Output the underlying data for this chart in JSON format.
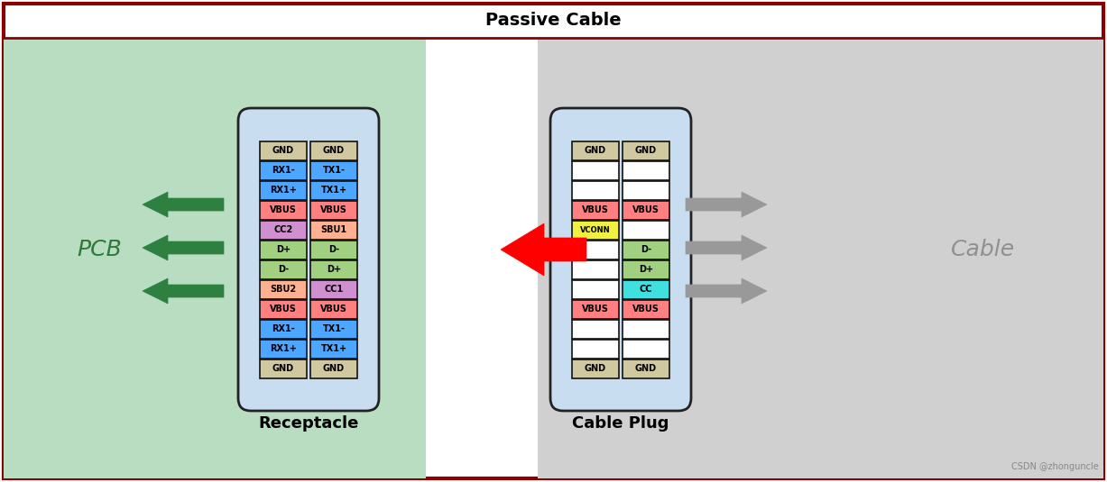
{
  "title": "Passive Cable",
  "background_color": "#ffffff",
  "pcb_bg_color": "#b8ddc0",
  "cable_bg_color": "#d0d0d0",
  "title_fontsize": 13,
  "receptacle_label": "Receptacle",
  "plug_label": "Cable Plug",
  "pcb_label": "PCB",
  "cable_label": "Cable",
  "watermark": "CSDN @zhonguncle",
  "connector_bg": "#c8ddf0",
  "receptacle": {
    "left_pins": [
      "GND",
      "RX1+",
      "RX1-",
      "VBUS",
      "SBU2",
      "D-",
      "D+",
      "CC2",
      "VBUS",
      "RX1+",
      "RX1-",
      "GND"
    ],
    "right_pins": [
      "GND",
      "TX1+",
      "TX1-",
      "VBUS",
      "CC1",
      "D+",
      "D-",
      "SBU1",
      "VBUS",
      "TX1+",
      "TX1-",
      "GND"
    ],
    "left_colors": [
      "#d0c8a0",
      "#4da6ff",
      "#4da6ff",
      "#ff8080",
      "#ffb090",
      "#a0d080",
      "#a0d080",
      "#d090d0",
      "#ff8080",
      "#4da6ff",
      "#4da6ff",
      "#d0c8a0"
    ],
    "right_colors": [
      "#d0c8a0",
      "#4da6ff",
      "#4da6ff",
      "#ff8080",
      "#d090d0",
      "#a0d080",
      "#a0d080",
      "#ffb090",
      "#ff8080",
      "#4da6ff",
      "#4da6ff",
      "#d0c8a0"
    ]
  },
  "plug": {
    "left_pins": [
      "GND",
      "",
      "",
      "VBUS",
      "",
      "",
      "",
      "VCONN",
      "VBUS",
      "",
      "",
      "GND"
    ],
    "right_pins": [
      "GND",
      "",
      "",
      "VBUS",
      "CC",
      "D+",
      "D-",
      "",
      "VBUS",
      "",
      "",
      "GND"
    ],
    "left_colors": [
      "#d0c8a0",
      "#ffffff",
      "#ffffff",
      "#ff8080",
      "#ffffff",
      "#ffffff",
      "#ffffff",
      "#f0f040",
      "#ff8080",
      "#ffffff",
      "#ffffff",
      "#d0c8a0"
    ],
    "right_colors": [
      "#d0c8a0",
      "#ffffff",
      "#ffffff",
      "#ff8080",
      "#40e0e0",
      "#a0d080",
      "#a0d080",
      "#ffffff",
      "#ff8080",
      "#ffffff",
      "#ffffff",
      "#d0c8a0"
    ]
  }
}
